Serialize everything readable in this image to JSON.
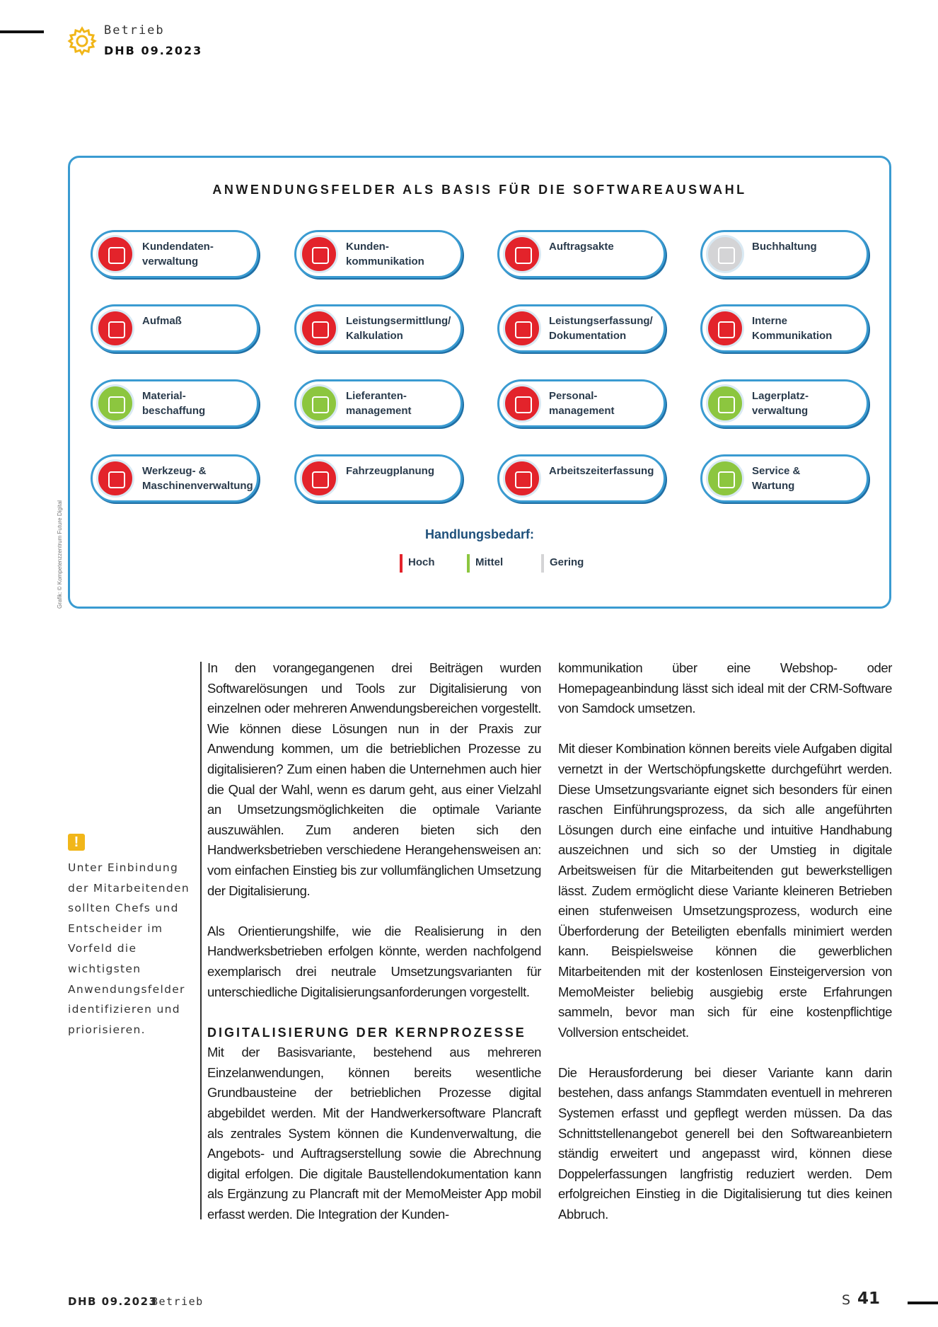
{
  "header": {
    "section": "Betrieb",
    "issue": "DHB 09.2023"
  },
  "graphic": {
    "title": "ANWENDUNGSFELDER ALS BASIS FÜR DIE SOFTWAREAUSWAHL",
    "items": [
      {
        "lines": [
          "Kundendaten-",
          "verwaltung"
        ],
        "color": "#e3232b"
      },
      {
        "lines": [
          "Kunden-",
          "kommunikation"
        ],
        "color": "#e3232b"
      },
      {
        "lines": [
          "Auftragsakte"
        ],
        "color": "#e3232b"
      },
      {
        "lines": [
          "Buchhaltung"
        ],
        "color": "#d4d4d6"
      },
      {
        "lines": [
          "Aufmaß"
        ],
        "color": "#e3232b"
      },
      {
        "lines": [
          "Leistungsermittlung/",
          "Kalkulation"
        ],
        "color": "#e3232b"
      },
      {
        "lines": [
          "Leistungserfassung/",
          "Dokumentation"
        ],
        "color": "#e3232b"
      },
      {
        "lines": [
          "Interne",
          "Kommunikation"
        ],
        "color": "#e3232b"
      },
      {
        "lines": [
          "Material-",
          "beschaffung"
        ],
        "color": "#8cc63f"
      },
      {
        "lines": [
          "Lieferanten-",
          "management"
        ],
        "color": "#8cc63f"
      },
      {
        "lines": [
          "Personal-",
          "management"
        ],
        "color": "#e3232b"
      },
      {
        "lines": [
          "Lagerplatz-",
          "verwaltung"
        ],
        "color": "#8cc63f"
      },
      {
        "lines": [
          "Werkzeug- &",
          "Maschinenverwaltung"
        ],
        "color": "#e3232b"
      },
      {
        "lines": [
          "Fahrzeugplanung"
        ],
        "color": "#e3232b"
      },
      {
        "lines": [
          "Arbeitszeiterfassung"
        ],
        "color": "#e3232b"
      },
      {
        "lines": [
          "Service &",
          "Wartung"
        ],
        "color": "#8cc63f"
      }
    ],
    "legend_title": "Handlungsbedarf:",
    "legend": [
      {
        "name": "Hoch",
        "color": "#e3232b"
      },
      {
        "name": "Mittel",
        "color": "#8cc63f"
      },
      {
        "name": "Gering",
        "color": "#d4d4d6"
      }
    ],
    "credit": "Grafik: © Kompetenzzentrum Future Digital"
  },
  "note": "Unter Einbindung der Mitarbeitenden sollten Chefs und Entscheider im Vorfeld die wichtigsten Anwendungsfelder identifizieren und priorisieren.",
  "article": {
    "column1": [
      "In den vorangegangenen drei Beiträgen wurden Softwarelösungen und Tools zur Digitalisierung von einzelnen oder mehreren Anwendungsbereichen vorgestellt. Wie können diese Lösungen nun in der Praxis zur Anwendung kommen, um die betrieblichen Prozesse zu digitalisieren? Zum einen haben die Unternehmen auch hier die Qual der Wahl, wenn es darum geht, aus einer Vielzahl an Umsetzungsmöglichkeiten die optimale Variante auszuwählen. Zum anderen bieten sich den Handwerksbetrieben verschiedene Herangehensweisen an: vom einfachen Einstieg bis zur vollumfänglichen Umsetzung der Digitalisierung.",
      "Als Orientierungshilfe, wie die Realisierung in den Handwerksbetrieben erfolgen könnte, werden nachfolgend exemplarisch drei neutrale Umsetzungsvarianten für unterschiedliche Digitalisierungsanforderungen vorgestellt."
    ],
    "heading": "DIGITALISIERUNG DER KERNPROZESSE",
    "column1_after_heading": "Mit der Basisvariante, bestehend aus mehreren Einzelanwendungen, können bereits wesentliche Grundbausteine der betrieblichen Prozesse digital abgebildet werden. Mit der Handwerkersoftware Plancraft als zentrales System können die Kundenverwaltung, die Angebots- und Auftragserstellung sowie die Abrechnung digital erfolgen. Die digitale Baustellendokumentation kann als Ergänzung zu Plancraft mit der MemoMeister App mobil erfasst werden. Die Integration der Kunden-",
    "column2": [
      "kommunikation über eine Webshop- oder Homepageanbindung lässt sich ideal mit der CRM-Software von Samdock umsetzen.",
      "Mit dieser Kombination können bereits viele Aufgaben digital vernetzt in der Wertschöpfungskette durchgeführt werden. Diese Umsetzungsvariante eignet sich besonders für einen raschen Einführungsprozess, da sich alle angeführten Lösungen durch eine einfache und intuitive Handhabung auszeichnen und sich so der Umstieg in digitale Arbeitsweisen für die Mitarbeitenden gut bewerkstelligen lässt. Zudem ermöglicht diese Variante kleineren Betrieben einen stufenweisen Umsetzungsprozess, wodurch eine Überforderung der Beteiligten ebenfalls minimiert werden kann. Beispielsweise können die gewerblichen Mitarbeitenden mit der kostenlosen Einsteigerversion von MemoMeister beliebig ausgiebig erste Erfahrungen sammeln, bevor man sich für eine kostenpflichtige Vollversion entscheidet.",
      "Die Herausforderung bei dieser Variante kann darin bestehen, dass anfangs Stammdaten eventuell in mehreren Systemen erfasst und gepflegt werden müssen. Da das Schnittstellenangebot generell bei den Softwareanbietern ständig erweitert und angepasst wird, können diese Doppelerfassungen langfristig reduziert werden. Dem erfolgreichen Einstieg in die Digitalisierung tut dies keinen Abbruch."
    ]
  },
  "footer": {
    "issue": "DHB 09.2023",
    "section": "Betrieb",
    "page_prefix": "S",
    "page": "41"
  }
}
